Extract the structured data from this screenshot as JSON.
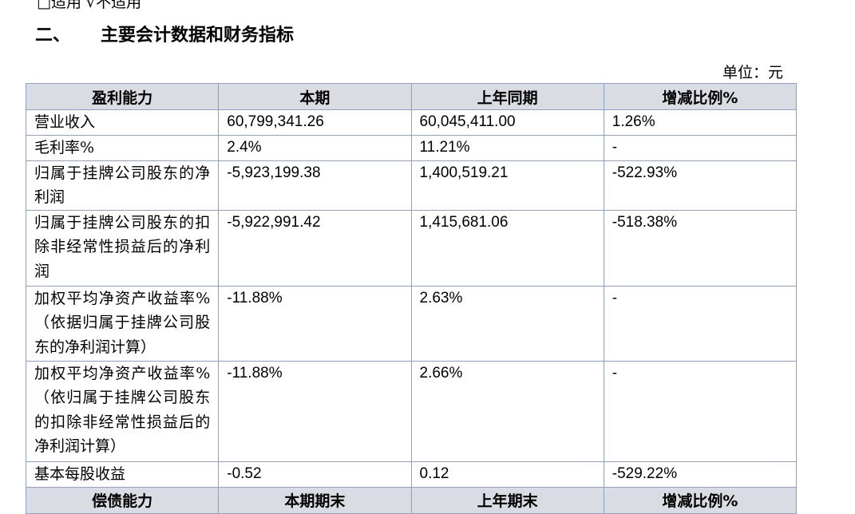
{
  "top_line": "□适用 √不适用",
  "section": {
    "number": "二、",
    "title": "主要会计数据和财务指标"
  },
  "unit_label": "单位：元",
  "table": {
    "headers": [
      "盈利能力",
      "本期",
      "上年同期",
      "增减比例%"
    ],
    "rows": [
      {
        "label": "营业收入",
        "current": "60,799,341.26",
        "prior": "60,045,411.00",
        "change": "1.26%"
      },
      {
        "label": "毛利率%",
        "current": "2.4%",
        "prior": "11.21%",
        "change": "-"
      },
      {
        "label": "归属于挂牌公司股东的净利润",
        "current": "-5,923,199.38",
        "prior": "1,400,519.21",
        "change": "-522.93%"
      },
      {
        "label": "归属于挂牌公司股东的扣除非经常性损益后的净利润",
        "current": "-5,922,991.42",
        "prior": "1,415,681.06",
        "change": "-518.38%"
      },
      {
        "label": "加权平均净资产收益率%（依据归属于挂牌公司股东的净利润计算）",
        "current": "-11.88%",
        "prior": "2.63%",
        "change": "-"
      },
      {
        "label": "加权平均净资产收益率%（依归属于挂牌公司股东的扣除非经常性损益后的净利润计算）",
        "current": "-11.88%",
        "prior": "2.66%",
        "change": "-"
      },
      {
        "label": "基本每股收益",
        "current": "-0.52",
        "prior": "0.12",
        "change": "-529.22%"
      }
    ],
    "next_headers": [
      "偿债能力",
      "本期期末",
      "上年期末",
      "增减比例%"
    ]
  }
}
